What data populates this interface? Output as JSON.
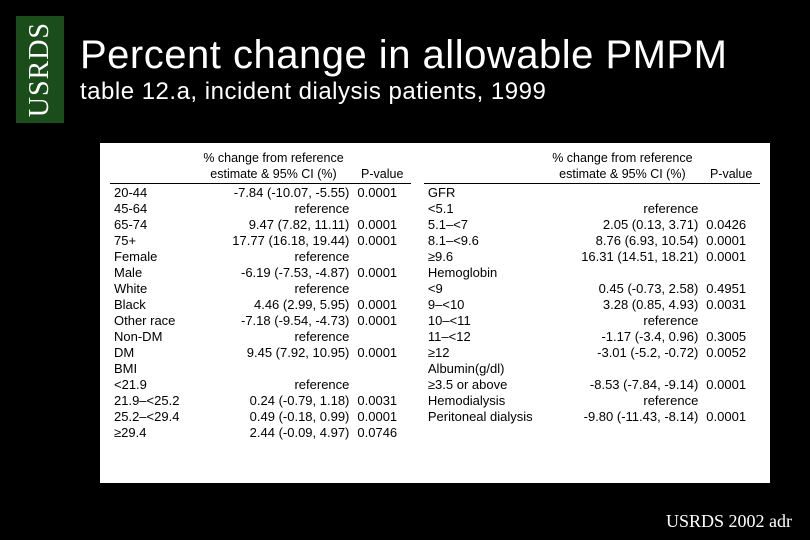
{
  "brand": "USRDS",
  "title": "Percent change in allowable PMPM",
  "subtitle": "table 12.a, incident dialysis patients, 1999",
  "footer": "USRDS 2002 adr",
  "header": {
    "line1": "% change from reference",
    "line2": "estimate & 95% CI (%)",
    "pvalue": "P-value"
  },
  "left": [
    {
      "label": "20-44",
      "est": "-7.84 (-10.07, -5.55)",
      "p": "0.0001"
    },
    {
      "label": "45-64",
      "est": "reference",
      "p": ""
    },
    {
      "label": "65-74",
      "est": "9.47 (7.82, 11.11)",
      "p": "0.0001"
    },
    {
      "label": "75+",
      "est": "17.77 (16.18, 19.44)",
      "p": "0.0001"
    },
    {
      "label": "Female",
      "est": "reference",
      "p": ""
    },
    {
      "label": "Male",
      "est": "-6.19 (-7.53, -4.87)",
      "p": "0.0001"
    },
    {
      "label": "White",
      "est": "reference",
      "p": ""
    },
    {
      "label": "Black",
      "est": "4.46 (2.99, 5.95)",
      "p": "0.0001"
    },
    {
      "label": "Other race",
      "est": "-7.18 (-9.54, -4.73)",
      "p": "0.0001"
    },
    {
      "label": "Non-DM",
      "est": "reference",
      "p": ""
    },
    {
      "label": "DM",
      "est": "9.45 (7.92, 10.95)",
      "p": "0.0001"
    },
    {
      "label": "BMI",
      "est": "",
      "p": ""
    },
    {
      "label": "<21.9",
      "est": "reference",
      "p": ""
    },
    {
      "label": "21.9–<25.2",
      "est": "0.24 (-0.79, 1.18)",
      "p": "0.0031"
    },
    {
      "label": "25.2–<29.4",
      "est": "0.49 (-0.18, 0.99)",
      "p": "0.0001"
    },
    {
      "label": "≥29.4",
      "est": "2.44 (-0.09, 4.97)",
      "p": "0.0746"
    }
  ],
  "right": [
    {
      "label": "GFR",
      "est": "",
      "p": ""
    },
    {
      "label": "<5.1",
      "est": "reference",
      "p": ""
    },
    {
      "label": "5.1–<7",
      "est": "2.05 (0.13, 3.71)",
      "p": "0.0426"
    },
    {
      "label": "8.1–<9.6",
      "est": "8.76 (6.93, 10.54)",
      "p": "0.0001"
    },
    {
      "label": "≥9.6",
      "est": "16.31 (14.51, 18.21)",
      "p": "0.0001"
    },
    {
      "label": "Hemoglobin",
      "est": "",
      "p": ""
    },
    {
      "label": "<9",
      "est": "0.45 (-0.73, 2.58)",
      "p": "0.4951"
    },
    {
      "label": "9–<10",
      "est": "3.28 (0.85, 4.93)",
      "p": "0.0031"
    },
    {
      "label": "10–<11",
      "est": "reference",
      "p": ""
    },
    {
      "label": "11–<12",
      "est": "-1.17 (-3.4, 0.96)",
      "p": "0.3005"
    },
    {
      "label": "≥12",
      "est": "-3.01 (-5.2, -0.72)",
      "p": "0.0052"
    },
    {
      "label": "Albumin(g/dl)",
      "est": "",
      "p": ""
    },
    {
      "label": "≥3.5 or above",
      "est": "-8.53 (-7.84, -9.14)",
      "p": "0.0001"
    },
    {
      "label": "Hemodialysis",
      "est": "reference",
      "p": ""
    },
    {
      "label": "Peritoneal dialysis",
      "est": "-9.80 (-11.43, -8.14)",
      "p": "0.0001"
    }
  ]
}
